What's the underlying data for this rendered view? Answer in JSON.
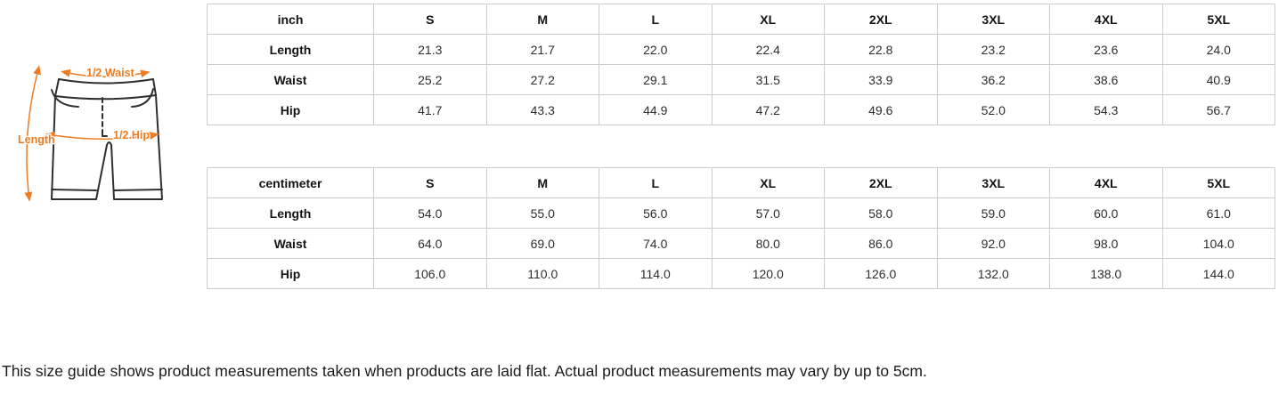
{
  "diagram": {
    "waist_label": "1/2 Waist",
    "length_label": "Length",
    "hip_label": "1/2 Hip",
    "accent_color": "#ee7b22",
    "outline_color": "#2f2f2f"
  },
  "tables": [
    {
      "unit": "inch",
      "sizes": [
        "S",
        "M",
        "L",
        "XL",
        "2XL",
        "3XL",
        "4XL",
        "5XL"
      ],
      "rows": [
        {
          "label": "Length",
          "values": [
            "21.3",
            "21.7",
            "22.0",
            "22.4",
            "22.8",
            "23.2",
            "23.6",
            "24.0"
          ]
        },
        {
          "label": "Waist",
          "values": [
            "25.2",
            "27.2",
            "29.1",
            "31.5",
            "33.9",
            "36.2",
            "38.6",
            "40.9"
          ]
        },
        {
          "label": "Hip",
          "values": [
            "41.7",
            "43.3",
            "44.9",
            "47.2",
            "49.6",
            "52.0",
            "54.3",
            "56.7"
          ]
        }
      ]
    },
    {
      "unit": "centimeter",
      "sizes": [
        "S",
        "M",
        "L",
        "XL",
        "2XL",
        "3XL",
        "4XL",
        "5XL"
      ],
      "rows": [
        {
          "label": "Length",
          "values": [
            "54.0",
            "55.0",
            "56.0",
            "57.0",
            "58.0",
            "59.0",
            "60.0",
            "61.0"
          ]
        },
        {
          "label": "Waist",
          "values": [
            "64.0",
            "69.0",
            "74.0",
            "80.0",
            "86.0",
            "92.0",
            "98.0",
            "104.0"
          ]
        },
        {
          "label": "Hip",
          "values": [
            "106.0",
            "110.0",
            "114.0",
            "120.0",
            "126.0",
            "132.0",
            "138.0",
            "144.0"
          ]
        }
      ]
    }
  ],
  "footnote": "This size guide shows product measurements taken when products are laid flat. Actual product measurements may vary by up to 5cm."
}
